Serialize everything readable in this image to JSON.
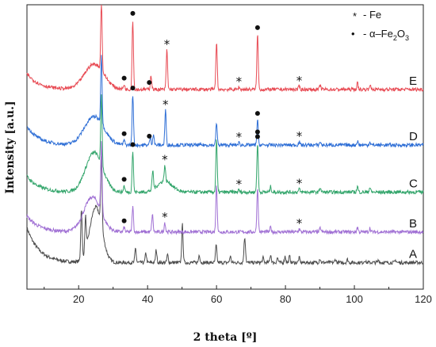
{
  "chart_data": {
    "type": "line",
    "xlabel": "2 theta [º]",
    "ylabel": "Intensity [a.u.]",
    "xlim": [
      5,
      120
    ],
    "x_ticks": [
      "20",
      "40",
      "60",
      "80",
      "100",
      "120"
    ],
    "x_tick_values": [
      20,
      40,
      60,
      80,
      100,
      120
    ],
    "grid": false,
    "legend_placement": "top-right",
    "legend": [
      {
        "marker": "*",
        "text": "- Fe"
      },
      {
        "marker": "•",
        "text": "- α–Fe",
        "sub": "2",
        "text2": "O",
        "sub2": "3"
      }
    ],
    "series": [
      {
        "name": "A",
        "color": "#4d4d4d",
        "baseline": 0.06,
        "level": 0.6,
        "broad": [
          {
            "x": 25,
            "h": 3.5,
            "w": 2.5
          }
        ],
        "start_rise": 2.2,
        "peaks": [
          [
            20.8,
            3.2
          ],
          [
            22.0,
            2.1
          ],
          [
            26.6,
            4.4
          ],
          [
            36.5,
            0.9
          ],
          [
            39.5,
            0.6
          ],
          [
            42.5,
            0.8
          ],
          [
            45.8,
            0.5
          ],
          [
            50.1,
            2.4
          ],
          [
            55.0,
            0.5
          ],
          [
            59.9,
            1.1
          ],
          [
            64.0,
            0.4
          ],
          [
            68.1,
            1.0
          ],
          [
            68.3,
            0.8
          ],
          [
            73.5,
            0.3
          ],
          [
            75.7,
            0.5
          ],
          [
            77.7,
            0.3
          ],
          [
            79.9,
            0.4
          ],
          [
            81.2,
            0.4
          ],
          [
            84.0,
            0.3
          ],
          [
            90.0,
            0.25
          ],
          [
            94.5,
            0.2
          ],
          [
            98.0,
            0.2
          ],
          [
            103.0,
            0.15
          ],
          [
            107.0,
            0.15
          ],
          [
            112.0,
            0.15
          ]
        ]
      },
      {
        "name": "B",
        "color": "#a070d4",
        "baseline": 0.19,
        "level": 0.2,
        "broad": [
          {
            "x": 24,
            "h": 2.2,
            "w": 3.5
          }
        ],
        "start_rise": 1.0,
        "peaks": [
          [
            26.6,
            4.4
          ],
          [
            33.2,
            0.3
          ],
          [
            35.7,
            1.6
          ],
          [
            41.4,
            1.1
          ],
          [
            45.0,
            0.6
          ],
          [
            60.0,
            3.0
          ],
          [
            71.9,
            2.8
          ],
          [
            75.7,
            0.3
          ],
          [
            84.0,
            0.2
          ],
          [
            90.1,
            0.25
          ],
          [
            100.9,
            0.3
          ],
          [
            104.5,
            0.25
          ]
        ],
        "markers": [
          {
            "x": 33.2,
            "type": "circle"
          },
          {
            "x": 45.0,
            "type": "star"
          },
          {
            "x": 84.0,
            "type": "star"
          }
        ]
      },
      {
        "name": "C",
        "color": "#33a56b",
        "baseline": 0.33,
        "level": 0.2,
        "broad": [
          {
            "x": 24.5,
            "h": 2.5,
            "w": 3.5
          },
          {
            "x": 45,
            "h": 0.7,
            "w": 3
          }
        ],
        "start_rise": 1.0,
        "peaks": [
          [
            26.6,
            4.4
          ],
          [
            33.2,
            0.4
          ],
          [
            35.7,
            2.6
          ],
          [
            41.5,
            1.2
          ],
          [
            45.0,
            1.0
          ],
          [
            60.0,
            3.3
          ],
          [
            66.5,
            0.15
          ],
          [
            71.9,
            3.1
          ],
          [
            75.7,
            0.35
          ],
          [
            84.0,
            0.2
          ],
          [
            90.1,
            0.3
          ],
          [
            100.9,
            0.35
          ],
          [
            104.5,
            0.3
          ]
        ],
        "markers": [
          {
            "x": 33.2,
            "type": "circle"
          },
          {
            "x": 35.7,
            "type": "circle"
          },
          {
            "x": 45.0,
            "type": "star"
          },
          {
            "x": 66.5,
            "type": "star"
          },
          {
            "x": 71.9,
            "type": "circle"
          },
          {
            "x": 71.9,
            "type": "circle2"
          },
          {
            "x": 84.0,
            "type": "star"
          }
        ]
      },
      {
        "name": "D",
        "color": "#2f6fd6",
        "baseline": 0.49,
        "level": 0.3,
        "broad": [
          {
            "x": 24.5,
            "h": 1.8,
            "w": 4
          }
        ],
        "start_rise": 1.2,
        "peaks": [
          [
            26.6,
            4.4
          ],
          [
            33.2,
            0.3
          ],
          [
            35.7,
            3.2
          ],
          [
            40.8,
            0.5
          ],
          [
            41.7,
            0.7
          ],
          [
            45.2,
            2.2
          ],
          [
            60.0,
            1.4
          ],
          [
            66.5,
            0.15
          ],
          [
            71.9,
            1.6
          ],
          [
            84.0,
            0.2
          ],
          [
            90.1,
            0.2
          ],
          [
            100.9,
            0.25
          ],
          [
            104.5,
            0.2
          ]
        ],
        "markers": [
          {
            "x": 33.2,
            "type": "circle"
          },
          {
            "x": 35.7,
            "type": "circle"
          },
          {
            "x": 40.5,
            "type": "circle"
          },
          {
            "x": 45.2,
            "type": "star"
          },
          {
            "x": 66.5,
            "type": "star"
          },
          {
            "x": 71.9,
            "type": "circle"
          },
          {
            "x": 84.0,
            "type": "star"
          }
        ]
      },
      {
        "name": "E",
        "color": "#e84c55",
        "baseline": 0.68,
        "level": 0.4,
        "broad": [
          {
            "x": 24.5,
            "h": 1.6,
            "w": 4
          }
        ],
        "start_rise": 1.0,
        "peaks": [
          [
            26.6,
            4.4
          ],
          [
            33.2,
            0.3
          ],
          [
            35.7,
            4.4
          ],
          [
            41.0,
            0.9
          ],
          [
            45.6,
            2.5
          ],
          [
            60.0,
            3.0
          ],
          [
            66.5,
            0.15
          ],
          [
            71.9,
            3.5
          ],
          [
            84.0,
            0.2
          ],
          [
            90.1,
            0.25
          ],
          [
            100.9,
            0.4
          ],
          [
            104.5,
            0.3
          ]
        ],
        "markers": [
          {
            "x": 33.2,
            "type": "circle"
          },
          {
            "x": 35.7,
            "type": "circle"
          },
          {
            "x": 40.5,
            "type": "circle"
          },
          {
            "x": 45.6,
            "type": "star"
          },
          {
            "x": 66.5,
            "type": "star"
          },
          {
            "x": 71.9,
            "type": "circle"
          },
          {
            "x": 84.0,
            "type": "star"
          }
        ]
      }
    ]
  }
}
